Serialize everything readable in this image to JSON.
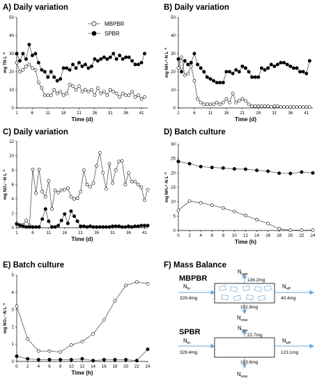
{
  "colors": {
    "series_open": "#ffffff",
    "series_closed": "#000000",
    "line": "#555555",
    "arrow": "#6aa7d8",
    "media": "#6aa7d8"
  },
  "legend": [
    {
      "name": "MBPBR",
      "marker": "open-circle"
    },
    {
      "name": "SPBR",
      "marker": "filled-circle"
    }
  ],
  "chart_data": [
    {
      "id": "A",
      "type": "line",
      "title": "A)  Daily variation",
      "xlabel": "Time (d)",
      "ylabel": "mg TN L",
      "xticks": [
        1,
        6,
        11,
        16,
        21,
        26,
        31,
        36,
        41
      ],
      "xlim": [
        1,
        43
      ],
      "ylim": [
        0,
        50
      ],
      "yticks": [
        0,
        10,
        20,
        30,
        40,
        50
      ],
      "x": [
        1,
        2,
        3,
        4,
        5,
        6,
        7,
        8,
        9,
        10,
        11,
        12,
        13,
        14,
        15,
        16,
        17,
        18,
        19,
        20,
        21,
        22,
        23,
        24,
        25,
        26,
        27,
        28,
        29,
        30,
        31,
        32,
        33,
        34,
        35,
        36,
        37,
        38,
        39,
        40,
        41,
        42
      ],
      "series": [
        {
          "name": "MBPBR",
          "marker": "open",
          "values": [
            25,
            20,
            21,
            23,
            24,
            22,
            21,
            14,
            11,
            7,
            7,
            7,
            10,
            8,
            9,
            7,
            8,
            13,
            12,
            10,
            12,
            9,
            10,
            9,
            10,
            7,
            11,
            8,
            9,
            7,
            10,
            9,
            8,
            6,
            8,
            7,
            7,
            9,
            6,
            7,
            5,
            6
          ]
        },
        {
          "name": "SPBR",
          "marker": "closed",
          "values": [
            30,
            26,
            30,
            27,
            35,
            29,
            30,
            25,
            21,
            20,
            17,
            20,
            17,
            15,
            16,
            22,
            22,
            21,
            24,
            22,
            25,
            23,
            24,
            22,
            23,
            27,
            26,
            27,
            28,
            27,
            28,
            30,
            27,
            29,
            27,
            28,
            28,
            26,
            24,
            24,
            25,
            30
          ]
        }
      ]
    },
    {
      "id": "B",
      "type": "line",
      "title": "B)  Daily variation",
      "xlabel": "Time (d)",
      "ylabel": "mg NH₄⁺-N L",
      "xticks": [
        1,
        6,
        11,
        16,
        21,
        26,
        31,
        36,
        41
      ],
      "xlim": [
        1,
        43
      ],
      "ylim": [
        0,
        50
      ],
      "yticks": [
        0,
        10,
        20,
        30,
        40,
        50
      ],
      "x": [
        1,
        2,
        3,
        4,
        5,
        6,
        7,
        8,
        9,
        10,
        11,
        12,
        13,
        14,
        15,
        16,
        17,
        18,
        19,
        20,
        21,
        22,
        23,
        24,
        25,
        26,
        27,
        28,
        29,
        30,
        31,
        32,
        33,
        34,
        35,
        36,
        37,
        38,
        39,
        40,
        41,
        42
      ],
      "series": [
        {
          "name": "MBPBR",
          "marker": "open",
          "values": [
            22,
            28,
            18,
            19,
            23,
            15,
            5,
            3,
            2,
            2,
            2,
            2,
            3,
            2,
            3,
            5,
            3,
            8,
            3,
            4,
            5,
            4,
            2,
            1,
            1,
            1,
            1,
            1,
            1,
            0.5,
            1,
            1,
            0.5,
            0.5,
            0.5,
            0.5,
            0.5,
            0.5,
            0.5,
            0.5,
            0.5,
            0.5
          ]
        },
        {
          "name": "SPBR",
          "marker": "closed",
          "values": [
            27,
            20,
            26,
            24,
            25,
            30,
            24,
            22,
            20,
            17,
            16,
            15,
            14,
            14,
            14,
            20,
            20,
            19,
            21,
            20,
            23,
            22,
            20,
            17,
            17,
            17,
            22,
            21,
            22,
            24,
            23,
            24,
            25,
            25,
            24,
            23,
            22,
            22,
            20,
            20,
            19,
            26
          ]
        }
      ]
    },
    {
      "id": "C",
      "type": "line",
      "title": "C)  Daily variation",
      "xlabel": "Time (d)",
      "ylabel": "mg NO₂⁻-N L",
      "xticks": [
        1,
        6,
        11,
        16,
        21,
        26,
        31,
        36,
        41
      ],
      "xlim": [
        1,
        42
      ],
      "ylim": [
        0,
        12
      ],
      "yticks": [
        0,
        2,
        4,
        6,
        8,
        10,
        12
      ],
      "x": [
        1,
        2,
        3,
        4,
        5,
        6,
        7,
        8,
        9,
        10,
        11,
        12,
        13,
        14,
        15,
        16,
        17,
        18,
        19,
        20,
        21,
        22,
        23,
        24,
        25,
        26,
        27,
        28,
        29,
        30,
        31,
        32,
        33,
        34,
        35,
        36,
        37,
        38,
        39,
        40,
        41,
        42
      ],
      "series": [
        {
          "name": "MBPBR",
          "marker": "open",
          "values": [
            0.6,
            0.4,
            0.4,
            1.0,
            0.3,
            8.1,
            4.8,
            8.1,
            5.0,
            4.3,
            6.5,
            2.6,
            5.2,
            4.9,
            5.2,
            5.3,
            5.5,
            4.3,
            4.0,
            4.1,
            5.0,
            8.0,
            6.0,
            5.7,
            6.2,
            8.6,
            10.4,
            7.6,
            5.4,
            8.9,
            6.2,
            8.0,
            9.2,
            9.3,
            6.0,
            7.6,
            6.4,
            6.4,
            6.0,
            5.6,
            3.8,
            5.3
          ]
        },
        {
          "name": "SPBR",
          "marker": "closed",
          "values": [
            0.5,
            0.3,
            0.2,
            0.1,
            0.1,
            0.1,
            0.1,
            0.1,
            1.2,
            2.6,
            0.9,
            0.1,
            0.1,
            0.3,
            1.0,
            1.9,
            0.6,
            2.3,
            1.6,
            0.9,
            0.2,
            0.2,
            0.1,
            0.2,
            0.1,
            0.1,
            0.1,
            0.1,
            0.1,
            0.1,
            0.2,
            0.2,
            0.2,
            0.1,
            0.1,
            0.2,
            0.1,
            0.2,
            0.2,
            0.3,
            0.3,
            0.3
          ]
        }
      ]
    },
    {
      "id": "D",
      "type": "line",
      "title": "D)  Batch culture",
      "xlabel": "Time (h)",
      "ylabel": "mg  NH₄⁺-N L",
      "xticks": [
        0,
        2,
        4,
        6,
        8,
        10,
        12,
        14,
        16,
        18,
        20,
        22,
        24
      ],
      "xlim": [
        0,
        24
      ],
      "ylim": [
        0,
        30
      ],
      "yticks": [
        0,
        5,
        10,
        15,
        20,
        25,
        30
      ],
      "x": [
        0,
        2,
        4,
        6,
        8,
        10,
        12,
        14,
        16,
        18,
        20,
        22,
        24
      ],
      "series": [
        {
          "name": "MBPBR",
          "marker": "open",
          "values": [
            7,
            10.2,
            9.6,
            8.8,
            7.8,
            6.6,
            5.2,
            3.8,
            2.4,
            0.6,
            0.1,
            0.1,
            0.1
          ]
        },
        {
          "name": "SPBR",
          "marker": "closed",
          "values": [
            24,
            23.2,
            22.2,
            21.9,
            21.7,
            21.4,
            21.3,
            20.9,
            20.6,
            19.9,
            19.8,
            20.3,
            20.0
          ]
        }
      ]
    },
    {
      "id": "E",
      "type": "line",
      "title": "E)  Batch culture",
      "xlabel": "Time (h)",
      "ylabel": "mg NO₃⁻-N L",
      "xticks": [
        0,
        2,
        4,
        6,
        8,
        10,
        12,
        14,
        16,
        18,
        20,
        22,
        24
      ],
      "xlim": [
        0,
        24
      ],
      "ylim": [
        0,
        5
      ],
      "yticks": [
        0,
        1,
        2,
        3,
        4,
        5
      ],
      "x": [
        0,
        2,
        4,
        6,
        8,
        10,
        12,
        14,
        16,
        18,
        20,
        22,
        24
      ],
      "series": [
        {
          "name": "MBPBR",
          "marker": "open",
          "values": [
            3.2,
            1.3,
            0.6,
            0.6,
            0.55,
            0.95,
            1.15,
            1.6,
            2.4,
            3.5,
            4.4,
            4.6,
            4.5
          ]
        },
        {
          "name": "SPBR",
          "marker": "closed",
          "values": [
            0.3,
            0.15,
            0.1,
            0.1,
            0.1,
            0.1,
            0.15,
            0.05,
            0.1,
            0.1,
            0.1,
            0.05,
            0.7
          ]
        }
      ]
    }
  ],
  "mass_balance": {
    "title": "F)   Mass Balance",
    "labels": {
      "in": "N",
      "in_sub": "in",
      "gas": "N",
      "gas_sub": "gas",
      "eff": "N",
      "eff_sub": "eff",
      "was": "N",
      "was_sub": "was"
    },
    "mbpbr": {
      "name": "MBPBR",
      "in": "329.4mg",
      "gas": "136.2mg",
      "eff": "40.4mg",
      "was": "152.8mg"
    },
    "spbr": {
      "name": "SPBR",
      "in": "329.4mg",
      "gas": "22.7mg",
      "eff": "123.1mg",
      "was": "183.6mg"
    }
  }
}
